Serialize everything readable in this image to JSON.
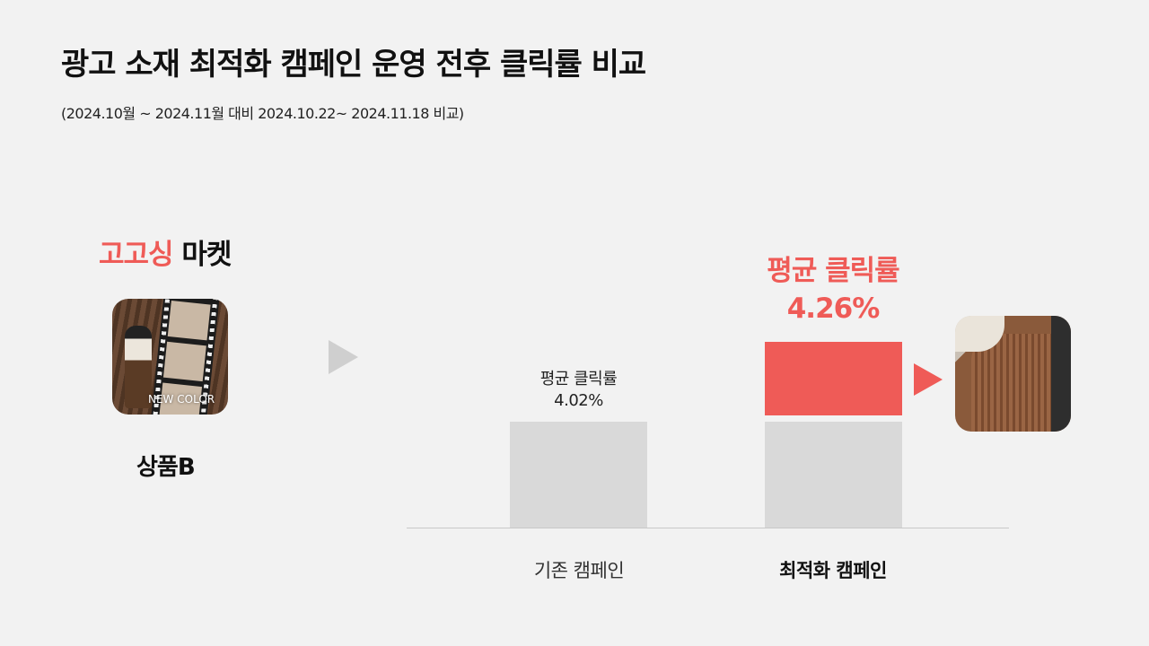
{
  "title": "광고 소재 최적화 캠페인 운영 전후 클릭률 비교",
  "subtitle": "(2024.10월 ~ 2024.11월 대비 2024.10.22~ 2024.11.18 비교)",
  "brand": {
    "accent": "고고싱",
    "rest": " 마켓"
  },
  "product": {
    "label": "상품B",
    "badge": "NEW COLOR"
  },
  "colors": {
    "accent": "#ef5b57",
    "base_bar": "#d9d9d9",
    "background": "#f2f2f2"
  },
  "chart_data": {
    "type": "bar",
    "categories": [
      "기존 캠페인",
      "최적화 캠페인"
    ],
    "values": [
      4.02,
      4.26
    ],
    "unit": "%",
    "data_labels": [
      {
        "caption": "평균 클릭률",
        "value": "4.02%"
      },
      {
        "caption": "평균 클릭률",
        "value": "4.26%"
      }
    ],
    "highlight": {
      "category": "최적화 캠페인",
      "increment": 0.24,
      "color": "#ef5b57"
    },
    "grid": false,
    "legend": false
  }
}
